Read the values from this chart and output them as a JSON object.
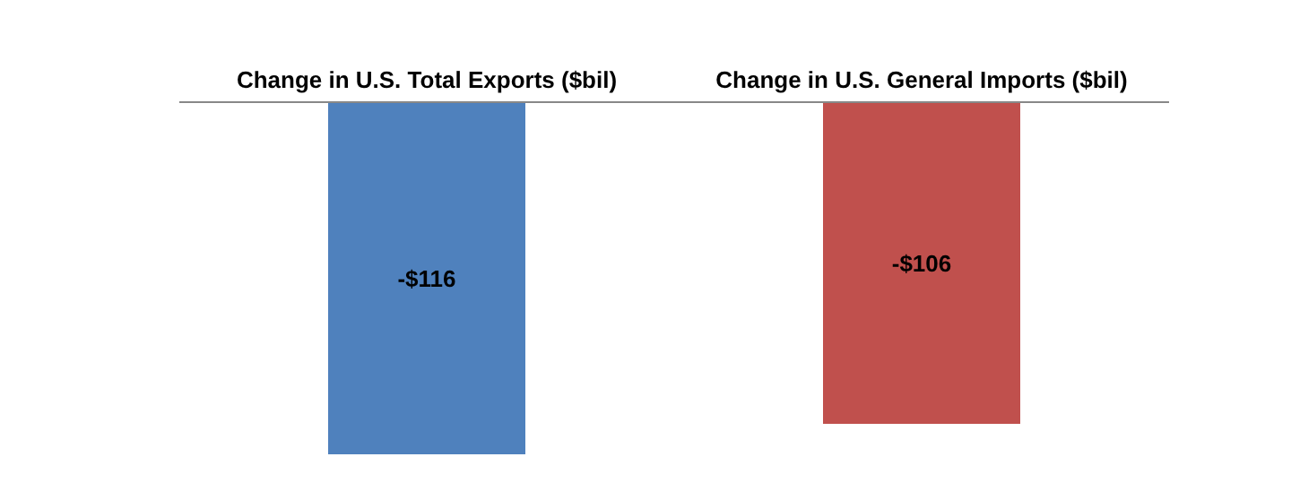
{
  "chart_data": {
    "type": "bar",
    "categories": [
      "Change in U.S. Total Exports ($bil)",
      "Change in U.S. General Imports ($bil)"
    ],
    "values": [
      -116,
      -106
    ],
    "colors": [
      "#4f81bd",
      "#c0504d"
    ],
    "value_labels": [
      "-$116",
      "-$106"
    ],
    "grid": false,
    "legend": false
  }
}
